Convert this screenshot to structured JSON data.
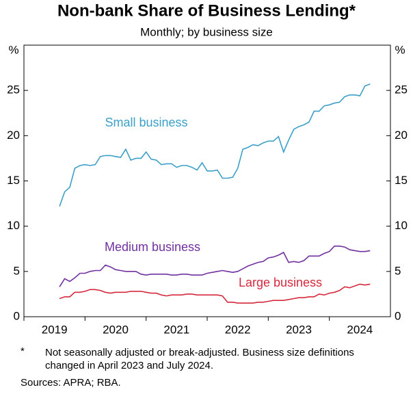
{
  "chart_data": {
    "type": "line",
    "title": "Non-bank Share of Business Lending*",
    "subtitle": "Monthly; by business size",
    "y_unit": "%",
    "y2_unit": "%",
    "x": [
      2019.583,
      2019.667,
      2019.75,
      2019.833,
      2019.917,
      2020,
      2020.083,
      2020.167,
      2020.25,
      2020.333,
      2020.417,
      2020.5,
      2020.583,
      2020.667,
      2020.75,
      2020.833,
      2020.917,
      2021,
      2021.083,
      2021.167,
      2021.25,
      2021.333,
      2021.417,
      2021.5,
      2021.583,
      2021.667,
      2021.75,
      2021.833,
      2021.917,
      2022,
      2022.083,
      2022.167,
      2022.25,
      2022.333,
      2022.417,
      2022.5,
      2022.583,
      2022.667,
      2022.75,
      2022.833,
      2022.917,
      2023,
      2023.083,
      2023.167,
      2023.25,
      2023.333,
      2023.417,
      2023.5,
      2023.583,
      2023.667,
      2023.75,
      2023.833,
      2023.917,
      2024,
      2024.083,
      2024.167,
      2024.25,
      2024.333,
      2024.417,
      2024.5,
      2024.583,
      2024.667
    ],
    "series": [
      {
        "name": "Small business",
        "color": "#3b9fc9",
        "values": [
          12.2,
          13.8,
          14.3,
          16.4,
          16.7,
          16.8,
          16.7,
          16.8,
          17.7,
          17.8,
          17.8,
          17.7,
          17.6,
          18.5,
          17.3,
          17.5,
          17.5,
          18.2,
          17.4,
          17.3,
          16.8,
          16.9,
          16.9,
          16.5,
          16.7,
          16.7,
          16.5,
          16.2,
          17.0,
          16.1,
          16.1,
          16.2,
          15.3,
          15.3,
          15.4,
          16.4,
          18.5,
          18.7,
          19.0,
          18.9,
          19.2,
          19.4,
          19.4,
          19.9,
          18.2,
          19.5,
          20.7,
          21.0,
          21.2,
          21.5,
          22.7,
          22.7,
          23.3,
          23.4,
          23.6,
          23.7,
          24.3,
          24.5,
          24.5,
          24.4,
          25.5,
          25.7
        ]
      },
      {
        "name": "Medium business",
        "color": "#7030a0",
        "values": [
          3.3,
          4.2,
          3.9,
          4.3,
          4.8,
          4.8,
          5.0,
          5.1,
          5.1,
          5.7,
          5.5,
          5.2,
          5.1,
          5.0,
          5.0,
          5.0,
          4.7,
          4.6,
          4.7,
          4.7,
          4.7,
          4.7,
          4.6,
          4.6,
          4.7,
          4.7,
          4.6,
          4.6,
          4.6,
          4.8,
          4.9,
          5.0,
          5.1,
          5.0,
          4.9,
          5.0,
          5.3,
          5.6,
          5.8,
          6.0,
          6.1,
          6.5,
          6.6,
          6.8,
          7.1,
          6.0,
          6.1,
          6.0,
          6.2,
          6.7,
          6.7,
          6.7,
          7.0,
          7.2,
          7.8,
          7.8,
          7.7,
          7.4,
          7.3,
          7.2,
          7.2,
          7.3
        ]
      },
      {
        "name": "Large business",
        "color": "#d6283c",
        "values": [
          2.0,
          2.2,
          2.2,
          2.7,
          2.7,
          2.8,
          3.0,
          3.0,
          2.9,
          2.7,
          2.6,
          2.7,
          2.7,
          2.7,
          2.8,
          2.8,
          2.8,
          2.7,
          2.6,
          2.6,
          2.4,
          2.3,
          2.4,
          2.4,
          2.4,
          2.5,
          2.5,
          2.4,
          2.4,
          2.4,
          2.4,
          2.4,
          2.3,
          1.6,
          1.6,
          1.5,
          1.5,
          1.5,
          1.5,
          1.6,
          1.6,
          1.7,
          1.8,
          1.8,
          1.8,
          1.9,
          2.0,
          2.1,
          2.1,
          2.2,
          2.2,
          2.5,
          2.4,
          2.6,
          2.7,
          2.9,
          3.3,
          3.2,
          3.4,
          3.6,
          3.5,
          3.6
        ]
      }
    ],
    "xlim": [
      2019,
      2025
    ],
    "xticks": [
      2019,
      2020,
      2021,
      2022,
      2023,
      2024
    ],
    "ylim": [
      0,
      30
    ],
    "yticks": [
      0,
      5,
      10,
      15,
      20,
      25
    ],
    "y2lim": [
      0,
      30
    ],
    "y2ticks": [
      0,
      5,
      10,
      15,
      20,
      25
    ],
    "grid": false,
    "footnote": {
      "marker": "*",
      "lines": [
        "Not seasonally adjusted or break-adjusted. Business size definitions",
        "changed in April 2023 and July 2024."
      ]
    },
    "sources": "Sources: APRA; RBA."
  }
}
